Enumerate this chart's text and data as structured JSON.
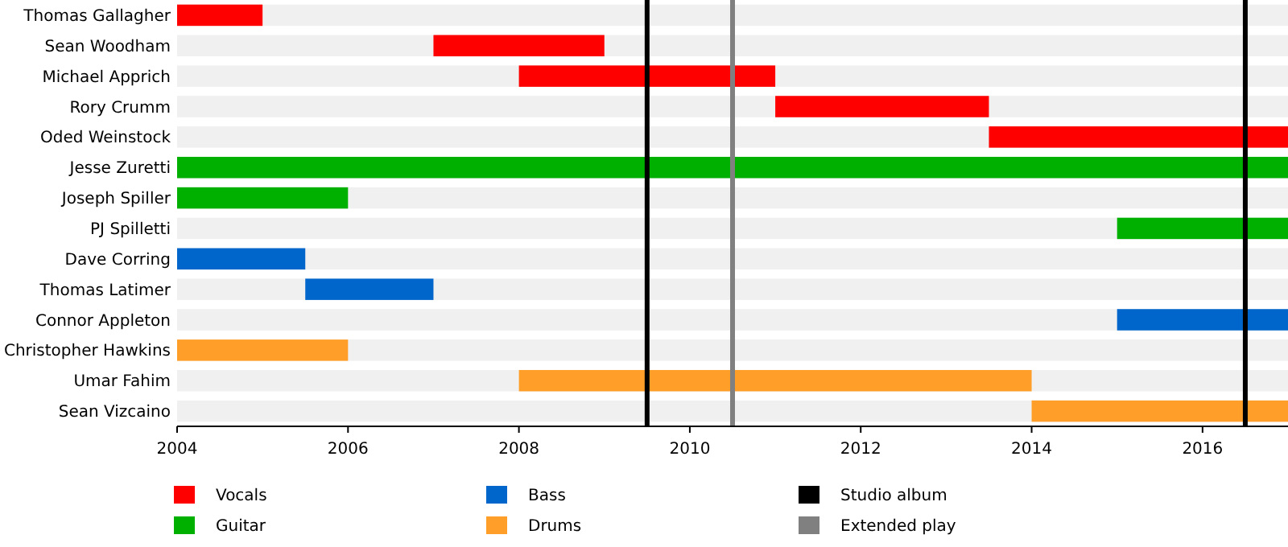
{
  "chart_data": {
    "type": "bar",
    "orientation": "horizontal",
    "categories": [
      "Thomas Gallagher",
      "Sean Woodham",
      "Michael Apprich",
      "Rory Crumm",
      "Oded Weinstock",
      "Jesse Zuretti",
      "Joseph Spiller",
      "PJ Spilletti",
      "Dave Corring",
      "Thomas Latimer",
      "Connor Appleton",
      "Christopher Hawkins",
      "Umar Fahim",
      "Sean Vizcaino"
    ],
    "series": [
      {
        "name": "Vocals",
        "color": "#ff0000",
        "base": [
          2004,
          2007,
          2008,
          2011,
          2013.5,
          null,
          null,
          null,
          null,
          null,
          null,
          null,
          null,
          null
        ],
        "values": [
          1,
          2,
          3,
          2.5,
          3.5,
          null,
          null,
          null,
          null,
          null,
          null,
          null,
          null,
          null
        ]
      },
      {
        "name": "Guitar",
        "color": "#00b000",
        "base": [
          null,
          null,
          null,
          null,
          null,
          2004,
          2004,
          2015,
          null,
          null,
          null,
          null,
          null,
          null
        ],
        "values": [
          null,
          null,
          null,
          null,
          null,
          13,
          2,
          2,
          null,
          null,
          null,
          null,
          null,
          null
        ]
      },
      {
        "name": "Bass",
        "color": "#0066cc",
        "base": [
          null,
          null,
          null,
          null,
          null,
          null,
          null,
          null,
          2004,
          2005.5,
          2015,
          null,
          null,
          null
        ],
        "values": [
          null,
          null,
          null,
          null,
          null,
          null,
          null,
          null,
          1.5,
          1.5,
          2,
          null,
          null,
          null
        ]
      },
      {
        "name": "Drums",
        "color": "#ff9f2a",
        "base": [
          null,
          null,
          null,
          null,
          null,
          null,
          null,
          null,
          null,
          null,
          null,
          2004,
          2008,
          2014
        ],
        "values": [
          null,
          null,
          null,
          null,
          null,
          null,
          null,
          null,
          null,
          null,
          null,
          2,
          6,
          3
        ]
      }
    ],
    "xlim": [
      2004,
      2017
    ],
    "xticks": [
      2004,
      2006,
      2008,
      2010,
      2012,
      2014,
      2016
    ],
    "ref_lines": [
      {
        "axis": "x",
        "value": 2009.5,
        "label": "Studio album",
        "color": "#000000"
      },
      {
        "axis": "x",
        "value": 2010.5,
        "label": "Extended play",
        "color": "#808080"
      },
      {
        "axis": "x",
        "value": 2016.5,
        "color": "#000000"
      }
    ],
    "legend": "bottom"
  }
}
